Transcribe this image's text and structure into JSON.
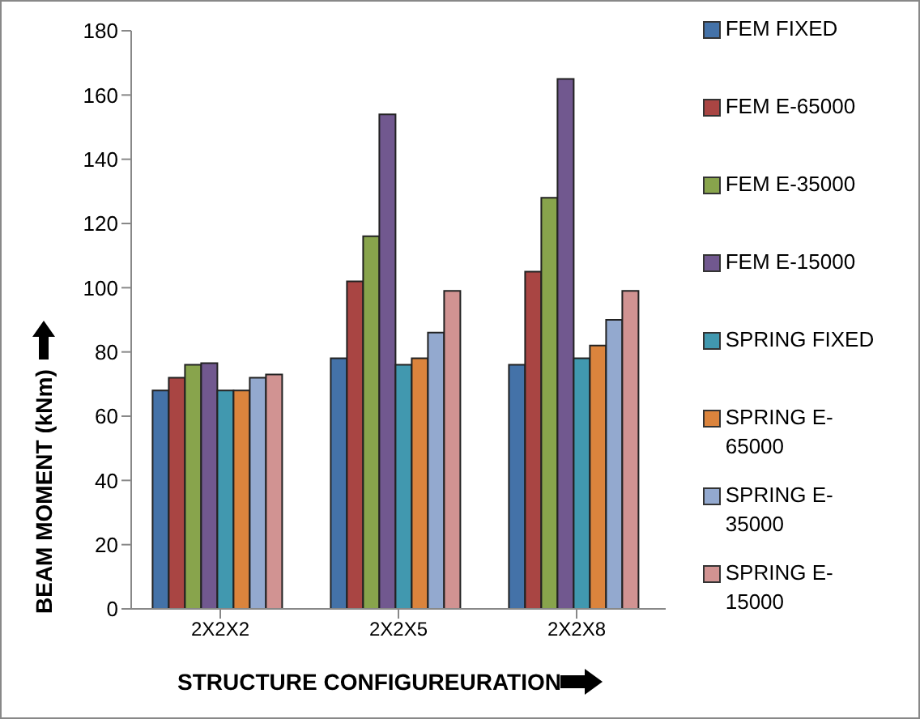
{
  "chart_data": {
    "type": "bar",
    "xlabel": "STRUCTURE CONFIGUREURATION",
    "ylabel": "BEAM MOMENT (kNm)",
    "categories": [
      "2X2X2",
      "2X2X5",
      "2X2X8"
    ],
    "series": [
      {
        "name": "FEM FIXED",
        "color": "#4472a8",
        "values": [
          68,
          78,
          76
        ]
      },
      {
        "name": "FEM E-65000",
        "color": "#a94543",
        "values": [
          72,
          102,
          105
        ]
      },
      {
        "name": "FEM E-35000",
        "color": "#88a44c",
        "values": [
          76,
          116,
          128
        ]
      },
      {
        "name": "FEM E-15000",
        "color": "#71588f",
        "values": [
          76.5,
          154,
          165
        ]
      },
      {
        "name": "SPRING FIXED",
        "color": "#4198af",
        "values": [
          68,
          76,
          78
        ]
      },
      {
        "name": "SPRING E-65000",
        "color": "#db843d",
        "values": [
          68,
          78,
          82
        ]
      },
      {
        "name": "SPRING E-35000",
        "color": "#93a9cf",
        "values": [
          72,
          86,
          90
        ]
      },
      {
        "name": "SPRING E-15000",
        "color": "#d19392",
        "values": [
          73,
          99,
          99
        ]
      }
    ],
    "ylim": [
      0,
      180
    ],
    "yticks": [
      0,
      20,
      40,
      60,
      80,
      100,
      120,
      140,
      160,
      180
    ],
    "grid": false,
    "legend": "right"
  }
}
